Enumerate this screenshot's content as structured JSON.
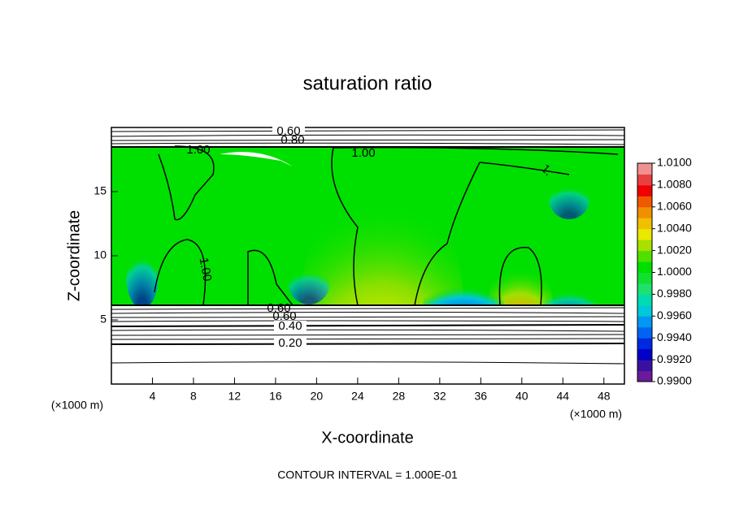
{
  "chart_data": {
    "type": "contour",
    "title": "saturation ratio",
    "xlabel": "X-coordinate",
    "ylabel": "Z-coordinate",
    "xunit": "(×1000 m)",
    "yunit": "(×1000 m)",
    "footer": "CONTOUR INTERVAL = 1.000E-01",
    "xlim": [
      0,
      50
    ],
    "xticks": [
      4,
      8,
      12,
      16,
      20,
      24,
      28,
      32,
      36,
      40,
      44,
      48
    ],
    "ylim": [
      0,
      20
    ],
    "yticks": [
      5,
      10,
      15
    ],
    "clim": [
      0.99,
      1.01
    ],
    "cticks": [
      {
        "value": 0.99,
        "label": "0.9900"
      },
      {
        "value": 0.992,
        "label": "0.9920"
      },
      {
        "value": 0.994,
        "label": "0.9940"
      },
      {
        "value": 0.996,
        "label": "0.9960"
      },
      {
        "value": 0.998,
        "label": "0.9980"
      },
      {
        "value": 1.0,
        "label": "1.0000"
      },
      {
        "value": 1.002,
        "label": "1.0020"
      },
      {
        "value": 1.004,
        "label": "1.0040"
      },
      {
        "value": 1.006,
        "label": "1.0060"
      },
      {
        "value": 1.008,
        "label": "1.0080"
      },
      {
        "value": 1.01,
        "label": "1.0100"
      }
    ],
    "colorbar_colors": [
      "#6a1a9a",
      "#3a10a0",
      "#0000c8",
      "#0028e0",
      "#0064f0",
      "#0098f0",
      "#00c8d8",
      "#00dcb0",
      "#20e070",
      "#10e030",
      "#00e000",
      "#50e000",
      "#a8e000",
      "#e8e800",
      "#f0c000",
      "#f09000",
      "#f05800",
      "#f00000",
      "#e84040",
      "#f09090"
    ],
    "annotations": [
      "0.60",
      "0.80",
      "1.00",
      "1.00",
      "1.00",
      "1.",
      "0.60",
      "0.60",
      "0.40",
      "0.20"
    ]
  }
}
